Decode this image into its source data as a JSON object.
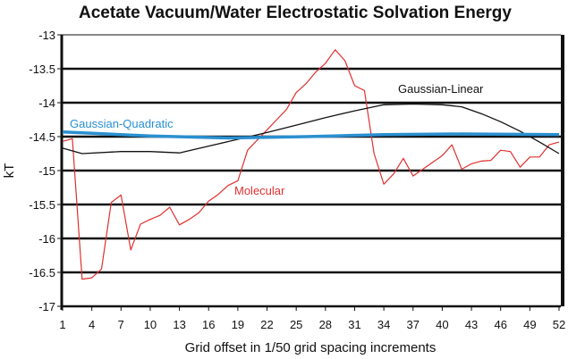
{
  "chart_data": {
    "type": "line",
    "title": "Acetate Vacuum/Water Electrostatic Solvation Energy",
    "xlabel": "Grid offset in 1/50 grid spacing increments",
    "ylabel": "kT",
    "ylim": [
      -17,
      -13
    ],
    "yticks": [
      "-13",
      "-13.5",
      "-14",
      "-14.5",
      "-15",
      "-15.5",
      "-16",
      "-16.5",
      "-17"
    ],
    "xticks": [
      "1",
      "4",
      "7",
      "10",
      "13",
      "16",
      "19",
      "22",
      "25",
      "28",
      "31",
      "34",
      "37",
      "40",
      "43",
      "46",
      "49",
      "52"
    ],
    "xrange": [
      1,
      52
    ],
    "grid": true,
    "series": [
      {
        "name": "Molecular",
        "color": "#e03030",
        "x": [
          1,
          2,
          3,
          4,
          5,
          6,
          7,
          8,
          9,
          10,
          11,
          12,
          13,
          14,
          15,
          16,
          17,
          18,
          19,
          20,
          21,
          22,
          23,
          24,
          25,
          26,
          27,
          28,
          29,
          30,
          31,
          32,
          33,
          34,
          35,
          36,
          37,
          38,
          39,
          40,
          41,
          42,
          43,
          44,
          45,
          46,
          47,
          48,
          49,
          50,
          51,
          52
        ],
        "values": [
          -14.57,
          -14.53,
          -16.6,
          -16.58,
          -16.45,
          -15.47,
          -15.36,
          -16.17,
          -15.79,
          -15.72,
          -15.66,
          -15.54,
          -15.8,
          -15.72,
          -15.62,
          -15.45,
          -15.35,
          -15.22,
          -15.15,
          -14.7,
          -14.55,
          -14.4,
          -14.25,
          -14.1,
          -13.85,
          -13.72,
          -13.55,
          -13.42,
          -13.22,
          -13.38,
          -13.75,
          -13.82,
          -14.75,
          -15.2,
          -15.05,
          -14.82,
          -15.08,
          -14.98,
          -14.88,
          -14.78,
          -14.62,
          -14.98,
          -14.9,
          -14.86,
          -14.85,
          -14.7,
          -14.72,
          -14.95,
          -14.8,
          -14.8,
          -14.62,
          -14.58
        ]
      },
      {
        "name": "Gaussian-Linear",
        "color": "#111111",
        "x": [
          1,
          3,
          7,
          10,
          13,
          16,
          19,
          22,
          25,
          28,
          31,
          34,
          37,
          40,
          42,
          44,
          46,
          48,
          50,
          52
        ],
        "values": [
          -14.67,
          -14.75,
          -14.72,
          -14.72,
          -14.74,
          -14.64,
          -14.54,
          -14.44,
          -14.33,
          -14.22,
          -14.12,
          -14.03,
          -14.02,
          -14.03,
          -14.06,
          -14.16,
          -14.28,
          -14.42,
          -14.58,
          -14.75
        ]
      },
      {
        "name": "Gaussian-Quadratic",
        "color": "#2a8fd0",
        "x": [
          1,
          10,
          18,
          26,
          34,
          42,
          52
        ],
        "values": [
          -14.43,
          -14.49,
          -14.52,
          -14.5,
          -14.47,
          -14.46,
          -14.47
        ]
      }
    ]
  }
}
